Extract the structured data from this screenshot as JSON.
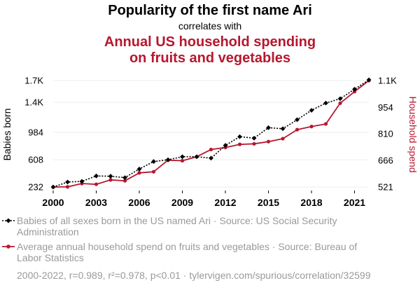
{
  "chart_data": {
    "type": "line",
    "title": "Popularity of the first name Ari",
    "connector": "correlates with",
    "headline_lines": [
      "Annual US household spending",
      "on fruits and vegetables"
    ],
    "xlabel": "",
    "x": [
      2000,
      2001,
      2002,
      2003,
      2004,
      2005,
      2006,
      2007,
      2008,
      2009,
      2010,
      2011,
      2012,
      2013,
      2014,
      2015,
      2016,
      2017,
      2018,
      2019,
      2020,
      2021,
      2022
    ],
    "xticks": [
      "2000",
      "2003",
      "2006",
      "2009",
      "2012",
      "2015",
      "2018",
      "2021"
    ],
    "left_axis": {
      "label": "Babies born",
      "ylim": [
        232,
        1700
      ],
      "tick_values": [
        232,
        608,
        984,
        1400,
        1700
      ],
      "tick_labels": [
        "232",
        "608",
        "984",
        "1.4K",
        "1.7K"
      ]
    },
    "right_axis": {
      "label": "Household spend",
      "ylim": [
        521,
        1100
      ],
      "tick_values": [
        521,
        666,
        810,
        954,
        1100
      ],
      "tick_labels": [
        "521",
        "666",
        "810",
        "954",
        "1.1K"
      ]
    },
    "series": [
      {
        "name": "Babies of all sexes born in the US named Ari",
        "axis": "left",
        "color": "#000000",
        "style": "dotted",
        "marker": "diamond",
        "values": [
          232,
          301,
          310,
          385,
          381,
          361,
          480,
          584,
          608,
          650,
          650,
          630,
          806,
          926,
          906,
          1050,
          1036,
          1160,
          1290,
          1390,
          1450,
          1580,
          1710
        ]
      },
      {
        "name": "Average annual household spend on fruits and vegetables",
        "axis": "right",
        "color": "#b7172f",
        "style": "solid",
        "marker": "circle",
        "values": [
          521,
          522,
          540,
          536,
          560,
          555,
          598,
          604,
          667,
          664,
          686,
          725,
          736,
          753,
          756,
          768,
          784,
          833,
          850,
          864,
          977,
          1040,
          1100
        ]
      }
    ],
    "legend": [
      {
        "lines": [
          "Babies of all sexes born in the US named Ari · Source: US Social Security",
          "Administration"
        ]
      },
      {
        "lines": [
          "Average annual household spend on fruits and vegetables · Source: Bureau of",
          "Labor Statistics"
        ]
      }
    ],
    "footnote": "2000-2022, r=0.989, r²=0.978, p<0.01 · tylervigen.com/spurious/correlation/32599"
  },
  "colors": {
    "black_series": "#000000",
    "red_series": "#b7172f",
    "grid": "#eeeeee",
    "legend_text": "#9a9a9a"
  }
}
